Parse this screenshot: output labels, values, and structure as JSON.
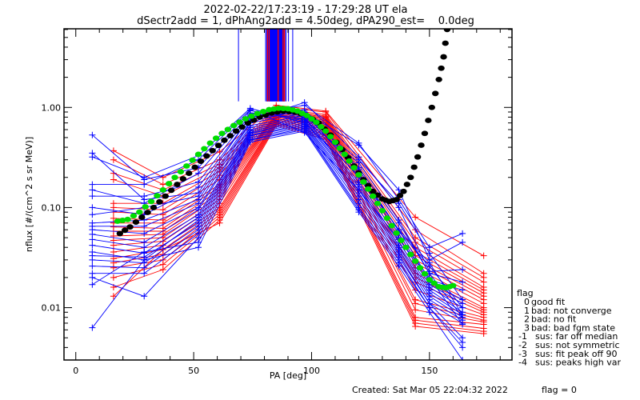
{
  "chart_data": {
    "type": "line",
    "title": "2022-02-22/17:23:19 - 17:29:28 UT ela",
    "subtitle": "dSectr2add = 1, dPhAng2add = 4.50deg, dPA290_est=    0.0deg",
    "xlabel": "PA [deg]",
    "ylabel": "nflux [#/(cm^2 s sr MeV)]",
    "xlim": [
      -5,
      185
    ],
    "ylim": [
      0.003,
      6.1
    ],
    "yscale": "log",
    "xticks": [
      0,
      50,
      100,
      150
    ],
    "xtick_labels": [
      "0",
      "50",
      "100",
      "150"
    ],
    "xminor_step": 10,
    "yticks": [
      0.01,
      0.1,
      1.0
    ],
    "ytick_labels": [
      "0.01",
      "0.10",
      "1.00"
    ],
    "grid": false,
    "legend": {
      "placement": "right-bottom-outside",
      "title": "flag",
      "entries": [
        "0 good fit",
        "1 bad: not converge",
        "2 bad: no fit",
        "3 bad: bad fgm state",
        "-1 sus: far off median",
        "-2 sus: not symmetric",
        "-3 sus: fit peak off 90",
        "-4 sus: peaks high var"
      ]
    },
    "footer": {
      "created": "Created: Sat Mar 05 22:04:32 2022",
      "flag": "flag = 0"
    },
    "colors": {
      "series_a": "#0000ff",
      "series_b": "#ff0000",
      "fit_green": "#00dd00",
      "fit_black": "#000000"
    },
    "peak_markers": {
      "description": "vertical lines marking fitted peak PA for each spectrum",
      "y_from": 1.15,
      "y_to": 6.1,
      "blue_x": [
        69.0,
        80.5,
        81.0,
        81.5,
        82.0,
        82.3,
        82.6,
        83.0,
        83.3,
        83.6,
        84.0,
        84.3,
        84.6,
        85.0,
        85.3,
        85.6,
        86.0,
        86.4,
        86.8,
        87.2,
        87.6,
        88.0,
        88.3,
        89.2,
        90.2,
        92.0
      ],
      "red_x": [
        81.3,
        82.0,
        85.8,
        87.9,
        88.5
      ]
    },
    "series_blue": [
      {
        "x": [
          7,
          29,
          52,
          74,
          97,
          120,
          137,
          150,
          164
        ],
        "y": [
          0.53,
          0.19,
          0.25,
          0.93,
          0.75,
          0.28,
          0.075,
          0.022,
          0.008
        ]
      },
      {
        "x": [
          7,
          29,
          52,
          74,
          97,
          120,
          137,
          150,
          164
        ],
        "y": [
          0.35,
          0.12,
          0.14,
          0.82,
          0.82,
          0.3,
          0.11,
          0.035,
          0.012
        ]
      },
      {
        "x": [
          7,
          29,
          52,
          74,
          97,
          120,
          137,
          150,
          164
        ],
        "y": [
          0.32,
          0.2,
          0.33,
          0.98,
          0.7,
          0.21,
          0.06,
          0.028,
          0.0085
        ]
      },
      {
        "x": [
          7,
          29,
          52,
          74,
          97,
          120,
          137,
          150,
          164
        ],
        "y": [
          0.17,
          0.17,
          0.3,
          0.95,
          0.56,
          0.15,
          0.048,
          0.02,
          0.0068
        ]
      },
      {
        "x": [
          7,
          29,
          52,
          74,
          97,
          120,
          137,
          150,
          164
        ],
        "y": [
          0.15,
          0.11,
          0.22,
          0.88,
          0.85,
          0.24,
          0.058,
          0.026,
          0.01
        ]
      },
      {
        "x": [
          7,
          29,
          52,
          74,
          97,
          120,
          137,
          150,
          164
        ],
        "y": [
          0.13,
          0.13,
          0.18,
          0.85,
          1.05,
          0.44,
          0.12,
          0.04,
          0.055
        ]
      },
      {
        "x": [
          7,
          29,
          52,
          74,
          97,
          120,
          137,
          150,
          164
        ],
        "y": [
          0.1,
          0.085,
          0.16,
          0.8,
          0.9,
          0.42,
          0.15,
          0.03,
          0.045
        ]
      },
      {
        "x": [
          7,
          29,
          52,
          74,
          97,
          120,
          137,
          150,
          164
        ],
        "y": [
          0.085,
          0.1,
          0.13,
          0.75,
          1.12,
          0.32,
          0.1,
          0.023,
          0.024
        ]
      },
      {
        "x": [
          7,
          29,
          52,
          74,
          97,
          120,
          137,
          150,
          164
        ],
        "y": [
          0.07,
          0.075,
          0.12,
          0.72,
          0.95,
          0.25,
          0.07,
          0.022,
          0.018
        ]
      },
      {
        "x": [
          7,
          29,
          52,
          74,
          97,
          120,
          137,
          150,
          164
        ],
        "y": [
          0.065,
          0.065,
          0.11,
          0.7,
          0.88,
          0.22,
          0.06,
          0.019,
          0.015
        ]
      },
      {
        "x": [
          7,
          29,
          52,
          74,
          97,
          120,
          137,
          150,
          164
        ],
        "y": [
          0.06,
          0.055,
          0.1,
          0.66,
          0.83,
          0.2,
          0.055,
          0.018,
          0.012
        ]
      },
      {
        "x": [
          7,
          29,
          52,
          74,
          97,
          120,
          137,
          150,
          164
        ],
        "y": [
          0.054,
          0.045,
          0.095,
          0.63,
          0.8,
          0.18,
          0.05,
          0.017,
          0.011
        ]
      },
      {
        "x": [
          7,
          29,
          52,
          74,
          97,
          120,
          137,
          150,
          164
        ],
        "y": [
          0.048,
          0.04,
          0.085,
          0.6,
          0.78,
          0.17,
          0.045,
          0.016,
          0.01
        ]
      },
      {
        "x": [
          7,
          29,
          52,
          74,
          97,
          120,
          137,
          150,
          164
        ],
        "y": [
          0.042,
          0.035,
          0.08,
          0.58,
          0.75,
          0.16,
          0.042,
          0.015,
          0.009
        ]
      },
      {
        "x": [
          7,
          29,
          52,
          74,
          97,
          120,
          137,
          150,
          164
        ],
        "y": [
          0.036,
          0.03,
          0.075,
          0.56,
          0.73,
          0.15,
          0.04,
          0.014,
          0.0085
        ]
      },
      {
        "x": [
          7,
          29,
          52,
          74,
          97,
          120,
          137,
          150,
          164
        ],
        "y": [
          0.033,
          0.032,
          0.07,
          0.55,
          0.7,
          0.14,
          0.038,
          0.013,
          0.008
        ]
      },
      {
        "x": [
          7,
          29,
          52,
          74,
          97,
          120,
          137,
          150,
          164
        ],
        "y": [
          0.03,
          0.028,
          0.065,
          0.53,
          0.68,
          0.13,
          0.036,
          0.012,
          0.0075
        ]
      },
      {
        "x": [
          7,
          29,
          52,
          74,
          97,
          120,
          137,
          150,
          164
        ],
        "y": [
          0.026,
          0.025,
          0.06,
          0.52,
          0.66,
          0.12,
          0.034,
          0.011,
          0.007
        ]
      },
      {
        "x": [
          7,
          29,
          52,
          74,
          97,
          120,
          137,
          150,
          164
        ],
        "y": [
          0.022,
          0.022,
          0.055,
          0.5,
          0.64,
          0.11,
          0.032,
          0.011,
          0.005
        ]
      },
      {
        "x": [
          7,
          29,
          52,
          74,
          97,
          120,
          137,
          150,
          164
        ],
        "y": [
          0.02,
          0.013,
          0.05,
          0.48,
          0.62,
          0.1,
          0.03,
          0.01,
          0.0045
        ]
      },
      {
        "x": [
          7,
          29,
          52,
          74,
          97,
          120,
          137,
          150,
          164
        ],
        "y": [
          0.017,
          0.036,
          0.045,
          0.47,
          0.6,
          0.095,
          0.028,
          0.01,
          0.004
        ]
      },
      {
        "x": [
          7,
          29,
          52,
          74,
          97,
          120,
          137,
          150,
          164
        ],
        "y": [
          0.0063,
          0.03,
          0.04,
          0.45,
          0.58,
          0.09,
          0.026,
          0.009,
          0.003
        ]
      }
    ],
    "series_red": [
      {
        "x": [
          16,
          37,
          61,
          85,
          106,
          144,
          173
        ],
        "y": [
          0.37,
          0.2,
          0.36,
          1.05,
          0.92,
          0.08,
          0.033
        ]
      },
      {
        "x": [
          16,
          37,
          61,
          85,
          106,
          144,
          173
        ],
        "y": [
          0.3,
          0.17,
          0.3,
          1.0,
          0.9,
          0.06,
          0.022
        ]
      },
      {
        "x": [
          16,
          37,
          61,
          85,
          106,
          144,
          173
        ],
        "y": [
          0.22,
          0.15,
          0.27,
          0.97,
          0.85,
          0.05,
          0.02
        ]
      },
      {
        "x": [
          16,
          37,
          61,
          85,
          106,
          144,
          173
        ],
        "y": [
          0.19,
          0.13,
          0.25,
          0.95,
          0.82,
          0.045,
          0.018
        ]
      },
      {
        "x": [
          16,
          37,
          61,
          85,
          106,
          144,
          173
        ],
        "y": [
          0.11,
          0.11,
          0.23,
          0.93,
          0.8,
          0.04,
          0.016
        ]
      },
      {
        "x": [
          16,
          37,
          61,
          85,
          106,
          144,
          173
        ],
        "y": [
          0.1,
          0.095,
          0.21,
          0.92,
          0.78,
          0.036,
          0.015
        ]
      },
      {
        "x": [
          16,
          37,
          61,
          85,
          106,
          144,
          173
        ],
        "y": [
          0.09,
          0.085,
          0.19,
          0.9,
          0.76,
          0.033,
          0.014
        ]
      },
      {
        "x": [
          16,
          37,
          61,
          85,
          106,
          144,
          173
        ],
        "y": [
          0.078,
          0.075,
          0.17,
          0.88,
          0.74,
          0.03,
          0.013
        ]
      },
      {
        "x": [
          16,
          37,
          61,
          85,
          106,
          144,
          173
        ],
        "y": [
          0.07,
          0.07,
          0.16,
          0.86,
          0.72,
          0.028,
          0.012
        ]
      },
      {
        "x": [
          16,
          37,
          61,
          85,
          106,
          144,
          173
        ],
        "y": [
          0.064,
          0.062,
          0.15,
          0.85,
          0.7,
          0.025,
          0.011
        ]
      },
      {
        "x": [
          16,
          37,
          61,
          85,
          106,
          144,
          173
        ],
        "y": [
          0.058,
          0.058,
          0.14,
          0.84,
          0.68,
          0.022,
          0.01
        ]
      },
      {
        "x": [
          16,
          37,
          61,
          85,
          106,
          144,
          173
        ],
        "y": [
          0.052,
          0.054,
          0.13,
          0.83,
          0.66,
          0.02,
          0.0095
        ]
      },
      {
        "x": [
          16,
          37,
          61,
          85,
          106,
          144,
          173
        ],
        "y": [
          0.047,
          0.05,
          0.12,
          0.82,
          0.64,
          0.018,
          0.009
        ]
      },
      {
        "x": [
          16,
          37,
          61,
          85,
          106,
          144,
          173
        ],
        "y": [
          0.042,
          0.046,
          0.11,
          0.8,
          0.62,
          0.015,
          0.0085
        ]
      },
      {
        "x": [
          16,
          37,
          61,
          85,
          106,
          144,
          173
        ],
        "y": [
          0.036,
          0.042,
          0.1,
          0.78,
          0.6,
          0.012,
          0.008
        ]
      },
      {
        "x": [
          16,
          37,
          61,
          85,
          106,
          144,
          173
        ],
        "y": [
          0.031,
          0.038,
          0.095,
          0.76,
          0.58,
          0.011,
          0.0075
        ]
      },
      {
        "x": [
          16,
          37,
          61,
          85,
          106,
          144,
          173
        ],
        "y": [
          0.028,
          0.034,
          0.09,
          0.74,
          0.56,
          0.0095,
          0.0072
        ]
      },
      {
        "x": [
          16,
          37,
          61,
          85,
          106,
          144,
          173
        ],
        "y": [
          0.025,
          0.03,
          0.085,
          0.72,
          0.54,
          0.008,
          0.0068
        ]
      },
      {
        "x": [
          16,
          37,
          61,
          85,
          106,
          144,
          173
        ],
        "y": [
          0.02,
          0.027,
          0.08,
          0.7,
          0.52,
          0.0075,
          0.0062
        ]
      },
      {
        "x": [
          16,
          37,
          61,
          85,
          106,
          144,
          173
        ],
        "y": [
          0.016,
          0.024,
          0.075,
          0.68,
          0.5,
          0.007,
          0.0058
        ]
      },
      {
        "x": [
          16,
          37,
          61,
          85,
          106,
          144,
          173
        ],
        "y": [
          0.013,
          0.038,
          0.07,
          0.66,
          0.48,
          0.0065,
          0.0055
        ]
      }
    ],
    "fit_green": {
      "x": [
        17.7,
        22,
        27,
        32,
        37,
        42,
        47,
        52,
        57,
        62,
        67,
        72,
        77,
        82,
        86,
        90,
        94,
        98,
        102,
        106,
        110,
        114,
        118,
        122,
        126,
        130,
        134,
        138,
        142,
        146,
        150,
        154,
        157,
        160
      ],
      "y": [
        0.073,
        0.076,
        0.09,
        0.115,
        0.15,
        0.2,
        0.26,
        0.34,
        0.44,
        0.55,
        0.66,
        0.77,
        0.87,
        0.95,
        0.98,
        0.97,
        0.92,
        0.83,
        0.71,
        0.58,
        0.45,
        0.34,
        0.25,
        0.18,
        0.13,
        0.093,
        0.066,
        0.047,
        0.034,
        0.025,
        0.019,
        0.0162,
        0.0158,
        0.0166
      ]
    },
    "fit_black": {
      "x": [
        18.7,
        23,
        28,
        33,
        38,
        43,
        48,
        53,
        58,
        63,
        68,
        73,
        78,
        83,
        88,
        93,
        98,
        103,
        108,
        113,
        118,
        122,
        126,
        130,
        133,
        136,
        139,
        142,
        145,
        148,
        151,
        154,
        156,
        157.5
      ],
      "y": [
        0.055,
        0.064,
        0.08,
        0.1,
        0.13,
        0.17,
        0.22,
        0.29,
        0.37,
        0.47,
        0.58,
        0.7,
        0.8,
        0.88,
        0.92,
        0.9,
        0.83,
        0.7,
        0.53,
        0.38,
        0.26,
        0.19,
        0.145,
        0.122,
        0.115,
        0.12,
        0.145,
        0.2,
        0.32,
        0.55,
        1.0,
        1.9,
        3.2,
        6.0
      ]
    }
  }
}
